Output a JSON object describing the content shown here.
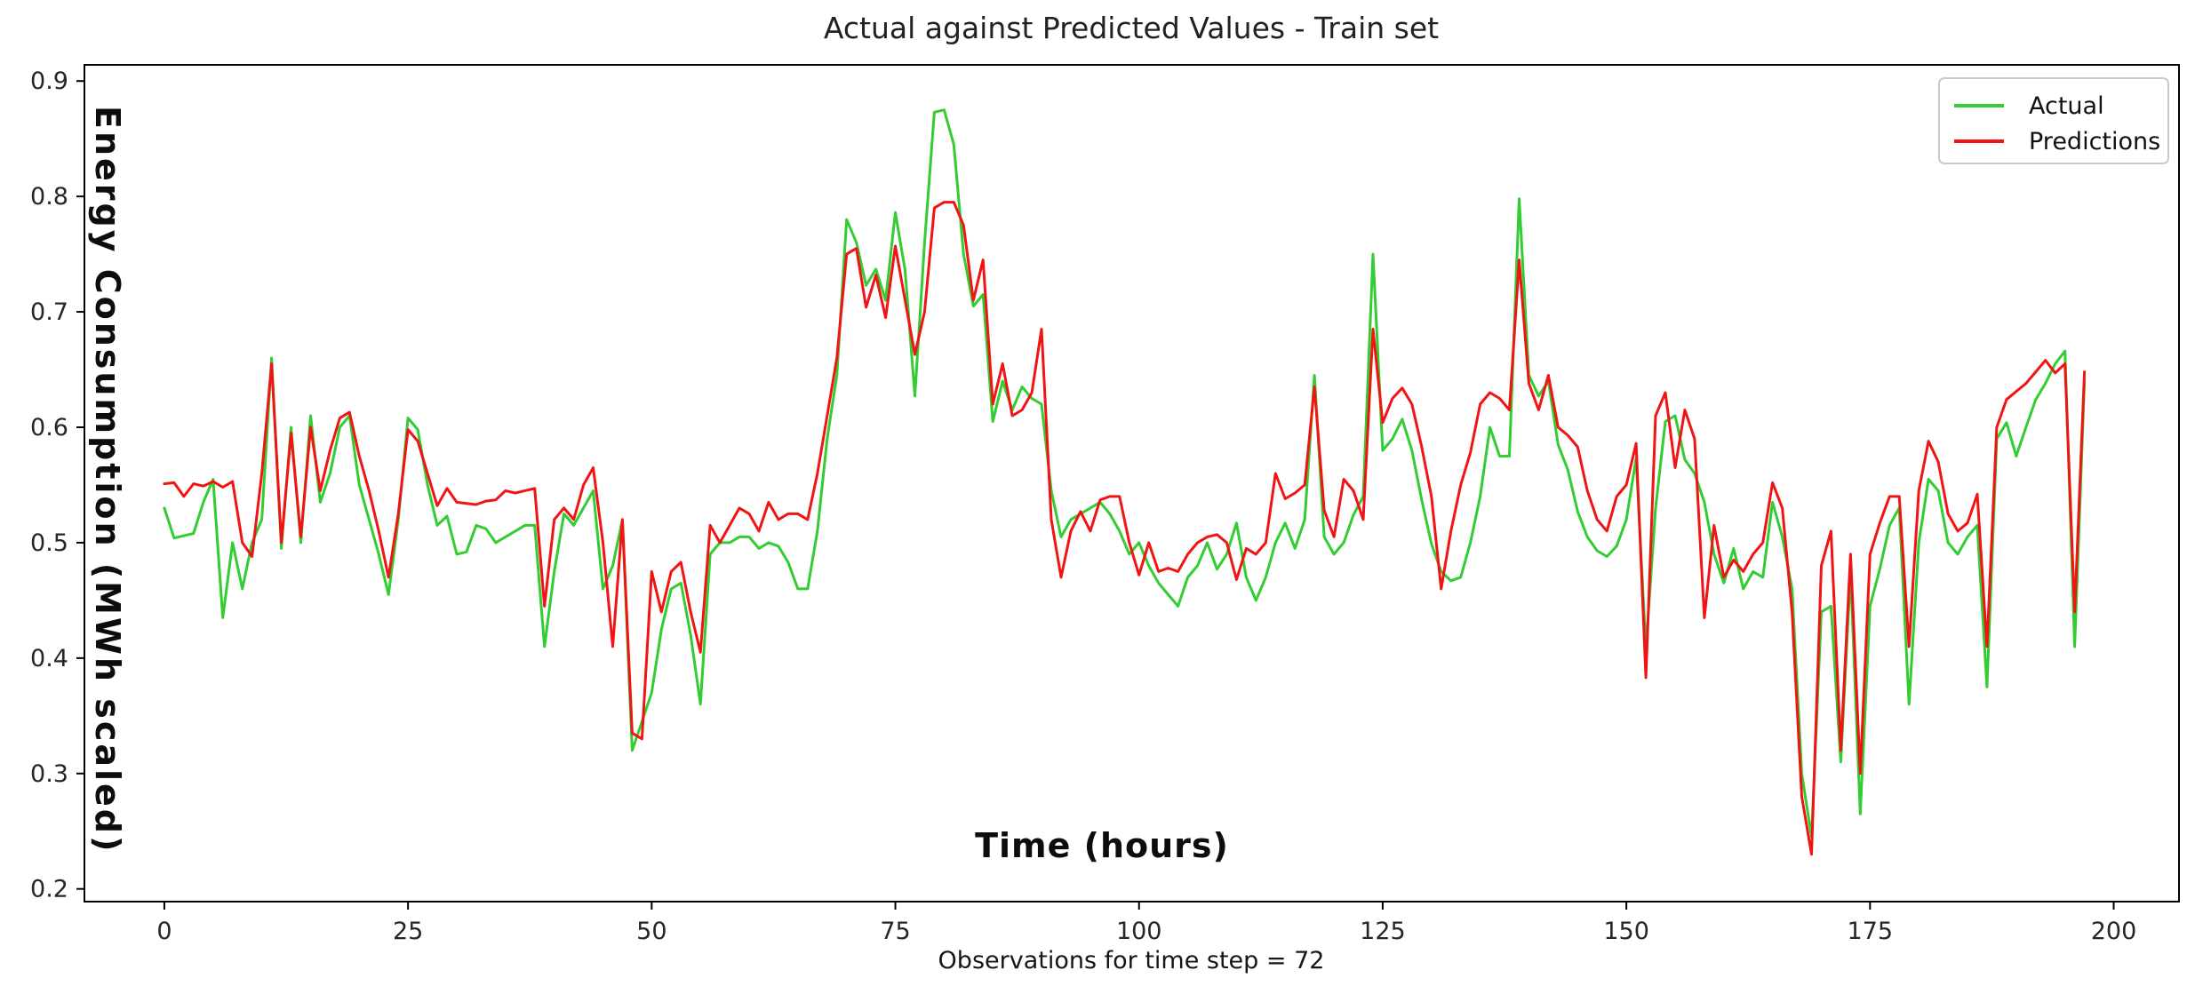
{
  "chart_data": {
    "type": "line",
    "title": "Actual against Predicted Values - Train set",
    "xlabel": "Observations for time step = 72",
    "ylabel_annotation": "Energy Consumption (MWh scaled)",
    "x_annotation": "Time (hours)",
    "grid": false,
    "xlim": [
      -8.2,
      206.7
    ],
    "ylim": [
      0.189,
      0.914
    ],
    "xticks": [
      0,
      25,
      50,
      75,
      100,
      125,
      150,
      175,
      200
    ],
    "yticks": [
      0.2,
      0.3,
      0.4,
      0.5,
      0.6,
      0.7,
      0.8,
      0.9
    ],
    "ytick_labels": [
      "0.2",
      "0.3",
      "0.4",
      "0.5",
      "0.6",
      "0.7",
      "0.8",
      "0.9"
    ],
    "legend": {
      "position": "upper right"
    },
    "axis_color": "#000000",
    "tick_label_color": "#262626",
    "x_start": 0,
    "x_step": 1,
    "series": [
      {
        "name": "Actual",
        "color": "#32cd32",
        "values": [
          0.53,
          0.504,
          0.506,
          0.508,
          0.535,
          0.555,
          0.435,
          0.5,
          0.46,
          0.5,
          0.52,
          0.66,
          0.495,
          0.6,
          0.5,
          0.61,
          0.535,
          0.56,
          0.6,
          0.61,
          0.55,
          0.52,
          0.49,
          0.455,
          0.52,
          0.608,
          0.598,
          0.55,
          0.515,
          0.523,
          0.49,
          0.492,
          0.515,
          0.512,
          0.5,
          0.505,
          0.51,
          0.515,
          0.515,
          0.41,
          0.475,
          0.525,
          0.515,
          0.53,
          0.545,
          0.46,
          0.48,
          0.52,
          0.32,
          0.345,
          0.37,
          0.425,
          0.46,
          0.465,
          0.42,
          0.36,
          0.49,
          0.5,
          0.5,
          0.505,
          0.505,
          0.495,
          0.5,
          0.497,
          0.483,
          0.46,
          0.46,
          0.51,
          0.59,
          0.645,
          0.78,
          0.76,
          0.723,
          0.737,
          0.71,
          0.786,
          0.736,
          0.627,
          0.76,
          0.873,
          0.875,
          0.845,
          0.75,
          0.705,
          0.715,
          0.605,
          0.64,
          0.615,
          0.635,
          0.625,
          0.62,
          0.545,
          0.505,
          0.52,
          0.525,
          0.53,
          0.535,
          0.525,
          0.51,
          0.49,
          0.5,
          0.48,
          0.465,
          0.455,
          0.445,
          0.47,
          0.48,
          0.5,
          0.477,
          0.49,
          0.517,
          0.47,
          0.45,
          0.47,
          0.5,
          0.517,
          0.495,
          0.52,
          0.645,
          0.505,
          0.49,
          0.5,
          0.524,
          0.54,
          0.75,
          0.58,
          0.59,
          0.607,
          0.58,
          0.537,
          0.499,
          0.475,
          0.467,
          0.47,
          0.5,
          0.54,
          0.6,
          0.575,
          0.575,
          0.798,
          0.645,
          0.627,
          0.64,
          0.585,
          0.563,
          0.527,
          0.505,
          0.493,
          0.488,
          0.497,
          0.52,
          0.573,
          0.408,
          0.53,
          0.605,
          0.61,
          0.572,
          0.56,
          0.535,
          0.49,
          0.465,
          0.495,
          0.46,
          0.475,
          0.47,
          0.535,
          0.505,
          0.46,
          0.3,
          0.245,
          0.44,
          0.445,
          0.31,
          0.475,
          0.265,
          0.445,
          0.477,
          0.515,
          0.53,
          0.36,
          0.5,
          0.555,
          0.545,
          0.5,
          0.49,
          0.505,
          0.515,
          0.375,
          0.59,
          0.604,
          0.575,
          0.6,
          0.624,
          0.638,
          0.655,
          0.666,
          0.41,
          0.64
        ]
      },
      {
        "name": "Predictions",
        "color": "#f11414",
        "values": [
          0.551,
          0.552,
          0.54,
          0.551,
          0.549,
          0.553,
          0.548,
          0.553,
          0.5,
          0.488,
          0.56,
          0.655,
          0.5,
          0.595,
          0.505,
          0.6,
          0.545,
          0.58,
          0.608,
          0.613,
          0.575,
          0.545,
          0.51,
          0.47,
          0.525,
          0.598,
          0.588,
          0.56,
          0.532,
          0.547,
          0.535,
          0.534,
          0.533,
          0.536,
          0.537,
          0.545,
          0.543,
          0.545,
          0.547,
          0.445,
          0.52,
          0.53,
          0.52,
          0.55,
          0.565,
          0.5,
          0.41,
          0.52,
          0.335,
          0.33,
          0.475,
          0.44,
          0.475,
          0.483,
          0.44,
          0.405,
          0.515,
          0.5,
          0.515,
          0.53,
          0.525,
          0.51,
          0.535,
          0.52,
          0.525,
          0.525,
          0.52,
          0.56,
          0.61,
          0.66,
          0.75,
          0.755,
          0.704,
          0.732,
          0.695,
          0.757,
          0.71,
          0.663,
          0.7,
          0.79,
          0.795,
          0.795,
          0.775,
          0.71,
          0.745,
          0.62,
          0.655,
          0.61,
          0.615,
          0.63,
          0.685,
          0.52,
          0.47,
          0.51,
          0.527,
          0.51,
          0.537,
          0.54,
          0.54,
          0.5,
          0.472,
          0.5,
          0.475,
          0.478,
          0.475,
          0.49,
          0.5,
          0.505,
          0.507,
          0.5,
          0.468,
          0.495,
          0.49,
          0.5,
          0.56,
          0.538,
          0.543,
          0.55,
          0.635,
          0.528,
          0.505,
          0.555,
          0.545,
          0.52,
          0.685,
          0.604,
          0.625,
          0.634,
          0.62,
          0.583,
          0.54,
          0.46,
          0.51,
          0.55,
          0.578,
          0.62,
          0.63,
          0.625,
          0.615,
          0.745,
          0.638,
          0.615,
          0.645,
          0.6,
          0.593,
          0.583,
          0.545,
          0.52,
          0.51,
          0.54,
          0.55,
          0.586,
          0.383,
          0.61,
          0.63,
          0.565,
          0.615,
          0.59,
          0.435,
          0.515,
          0.47,
          0.485,
          0.475,
          0.49,
          0.5,
          0.552,
          0.53,
          0.44,
          0.28,
          0.23,
          0.48,
          0.51,
          0.32,
          0.49,
          0.3,
          0.49,
          0.517,
          0.54,
          0.54,
          0.41,
          0.545,
          0.588,
          0.57,
          0.525,
          0.51,
          0.517,
          0.542,
          0.41,
          0.6,
          0.624,
          0.631,
          0.638,
          0.648,
          0.658,
          0.647,
          0.655,
          0.44,
          0.648
        ]
      }
    ]
  }
}
